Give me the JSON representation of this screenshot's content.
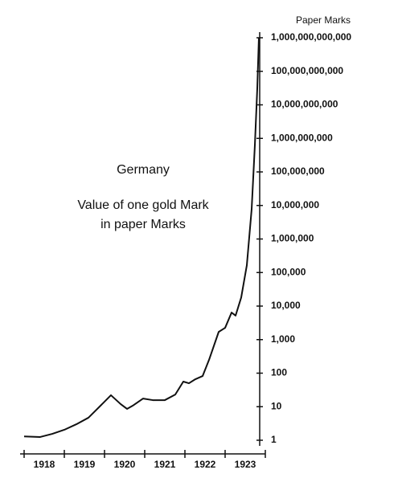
{
  "chart_data": {
    "type": "line",
    "title": "Germany",
    "subtitle": [
      "Value of one gold Mark",
      "in paper Marks"
    ],
    "y_label": "Paper Marks",
    "categories": [
      "1918",
      "1919",
      "1920",
      "1921",
      "1922",
      "1923"
    ],
    "xlim": [
      1918,
      1924
    ],
    "xticks": [
      1918,
      1919,
      1920,
      1921,
      1922,
      1923,
      1924
    ],
    "ylim": [
      1,
      1000000000000
    ],
    "log_y": true,
    "yticks": [
      1,
      10,
      100,
      {
        "value": 1000,
        "label": "1,000"
      },
      {
        "value": 10000,
        "label": "10,000"
      },
      {
        "value": 100000,
        "label": "100,000"
      },
      {
        "value": 1000000,
        "label": "1,000,000"
      },
      {
        "value": 10000000,
        "label": "10,000,000"
      },
      {
        "value": 100000000,
        "label": "100,000,000"
      },
      {
        "value": 1000000000,
        "label": "1,000,000,000"
      },
      {
        "value": 10000000000,
        "label": "10,000,000,000"
      },
      {
        "value": 100000000000,
        "label": "100,000,000,000"
      },
      {
        "value": 1000000000000,
        "label": "1,000,000,000,000"
      }
    ],
    "x": [
      1918.0,
      1918.4,
      1918.7,
      1919.0,
      1919.3,
      1919.6,
      1919.9,
      1920.16,
      1920.4,
      1920.56,
      1920.7,
      1920.96,
      1921.2,
      1921.5,
      1921.76,
      1921.96,
      1922.1,
      1922.26,
      1922.44,
      1922.6,
      1922.84,
      1923.0,
      1923.16,
      1923.26,
      1923.4,
      1923.54,
      1923.66,
      1923.74,
      1923.8,
      1923.84
    ],
    "values": [
      1.3,
      1.25,
      1.55,
      2.05,
      3.0,
      4.7,
      10.7,
      22,
      12,
      8.6,
      10.7,
      17.5,
      15.7,
      15.7,
      23,
      56,
      50,
      66,
      82,
      250,
      1700,
      2250,
      6400,
      5200,
      18000,
      165000,
      7800000,
      630000000,
      31000000000,
      1000000000000
    ],
    "color": "#111111"
  }
}
